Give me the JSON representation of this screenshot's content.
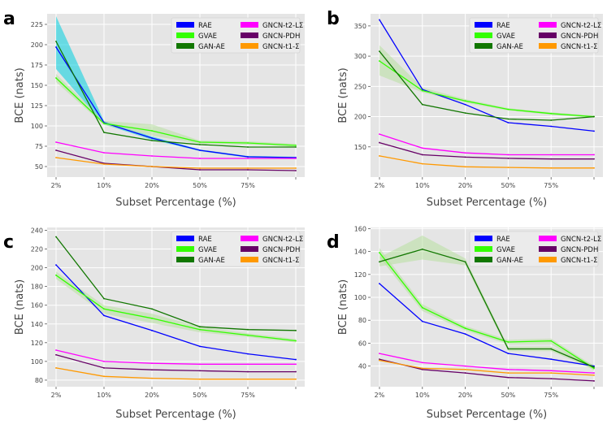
{
  "chart_data": [
    {
      "panel_label": "a",
      "type": "line",
      "categories": [
        "2%",
        "10%",
        "20%",
        "50%",
        "75%",
        ""
      ],
      "xlabel": "Subset Percentage (%)",
      "ylabel": "BCE (nats)",
      "ylim": [
        37,
        238
      ],
      "yticks": [
        50,
        75,
        100,
        125,
        150,
        175,
        200,
        225
      ],
      "grid": true,
      "legend": "top-right",
      "series": [
        {
          "name": "RAE",
          "color": "#0000ff",
          "values": [
            197,
            104,
            85,
            70,
            62,
            61
          ],
          "band": {
            "lower": [
              170,
              102,
              83,
              69,
              61,
              60
            ],
            "upper": [
              235,
              106,
              87,
              71,
              63,
              62
            ],
            "color": "#00d0e0"
          }
        },
        {
          "name": "GVAE",
          "color": "#33ff00",
          "values": [
            159,
            103,
            94,
            80,
            79,
            76
          ],
          "band": {
            "lower": [
              154,
              101,
              88,
              78,
              77,
              74
            ],
            "upper": [
              164,
              106,
              102,
              82,
              81,
              78
            ],
            "color": "#b8e0a0"
          }
        },
        {
          "name": "GAN-AE",
          "color": "#117700",
          "values": [
            204,
            92,
            82,
            77,
            74,
            74
          ]
        },
        {
          "name": "GNCN-t2-LΣ",
          "color": "#ff00ff",
          "values": [
            80,
            67,
            63,
            60,
            60,
            60
          ]
        },
        {
          "name": "GNCN-PDH",
          "color": "#660066",
          "values": [
            70,
            54,
            50,
            46,
            46,
            45
          ]
        },
        {
          "name": "GNCN-t1-Σ",
          "color": "#ff9900",
          "values": [
            61,
            53,
            50,
            48,
            48,
            48
          ]
        }
      ]
    },
    {
      "panel_label": "b",
      "type": "line",
      "categories": [
        "2%",
        "10%",
        "20%",
        "50%",
        "75%",
        ""
      ],
      "xlabel": "Subset Percentage (%)",
      "ylabel": "BCE (nats)",
      "ylim": [
        100,
        370
      ],
      "yticks": [
        150,
        200,
        250,
        300,
        350
      ],
      "grid": true,
      "legend": "top-right",
      "series": [
        {
          "name": "RAE",
          "color": "#0000ff",
          "values": [
            360,
            245,
            220,
            190,
            184,
            176
          ]
        },
        {
          "name": "GVAE",
          "color": "#33ff00",
          "values": [
            292,
            243,
            226,
            212,
            205,
            200
          ],
          "band": {
            "lower": [
              268,
              240,
              223,
              210,
              203,
              198
            ],
            "upper": [
              318,
              248,
              229,
              214,
              207,
              202
            ],
            "color": "#b8e0a0"
          }
        },
        {
          "name": "GAN-AE",
          "color": "#117700",
          "values": [
            308,
            220,
            206,
            196,
            194,
            200
          ]
        },
        {
          "name": "GNCN-t2-LΣ",
          "color": "#ff00ff",
          "values": [
            171,
            148,
            140,
            137,
            137,
            137
          ]
        },
        {
          "name": "GNCN-PDH",
          "color": "#660066",
          "values": [
            157,
            137,
            133,
            131,
            130,
            130
          ]
        },
        {
          "name": "GNCN-t1-Σ",
          "color": "#ff9900",
          "values": [
            135,
            122,
            117,
            116,
            115,
            115
          ]
        }
      ]
    },
    {
      "panel_label": "c",
      "type": "line",
      "categories": [
        "2%",
        "10%",
        "20%",
        "50%",
        "75%",
        ""
      ],
      "xlabel": "Subset Percentage (%)",
      "ylabel": "BCE (nats)",
      "ylim": [
        73,
        243
      ],
      "yticks": [
        80,
        100,
        120,
        140,
        160,
        180,
        200,
        220,
        240
      ],
      "grid": true,
      "legend": "top-right",
      "series": [
        {
          "name": "RAE",
          "color": "#0000ff",
          "values": [
            203,
            149,
            133,
            116,
            108,
            102
          ]
        },
        {
          "name": "GVAE",
          "color": "#33ff00",
          "values": [
            192,
            156,
            146,
            134,
            128,
            122
          ],
          "band": {
            "lower": [
              188,
              151,
              141,
              131,
              126,
              120
            ],
            "upper": [
              196,
              160,
              151,
              137,
              130,
              124
            ],
            "color": "#b8e0a0"
          }
        },
        {
          "name": "GAN-AE",
          "color": "#117700",
          "values": [
            233,
            167,
            156,
            137,
            134,
            133
          ]
        },
        {
          "name": "GNCN-t2-LΣ",
          "color": "#ff00ff",
          "values": [
            112,
            100,
            98,
            97,
            97,
            97
          ]
        },
        {
          "name": "GNCN-PDH",
          "color": "#660066",
          "values": [
            107,
            93,
            91,
            90,
            89,
            89
          ]
        },
        {
          "name": "GNCN-t1-Σ",
          "color": "#ff9900",
          "values": [
            93,
            84,
            82,
            81,
            81,
            81
          ]
        }
      ]
    },
    {
      "panel_label": "d",
      "type": "line",
      "categories": [
        "2%",
        "10%",
        "20%",
        "50%",
        "75%",
        ""
      ],
      "xlabel": "Subset Percentage (%)",
      "ylabel": "BCE (nats)",
      "ylim": [
        22,
        161
      ],
      "yticks": [
        40,
        60,
        80,
        100,
        120,
        140,
        160
      ],
      "grid": true,
      "legend": "top-right",
      "series": [
        {
          "name": "RAE",
          "color": "#0000ff",
          "values": [
            112,
            79,
            68,
            51,
            46,
            40
          ]
        },
        {
          "name": "GVAE",
          "color": "#33ff00",
          "values": [
            139,
            91,
            73,
            61,
            62,
            38
          ],
          "band": {
            "lower": [
              135,
              88,
              71,
              59,
              59,
              36
            ],
            "upper": [
              143,
              94,
              75,
              63,
              64,
              40
            ],
            "color": "#b8e0a0"
          }
        },
        {
          "name": "GAN-AE",
          "color": "#117700",
          "values": [
            131,
            142,
            131,
            55,
            55,
            39
          ],
          "band": {
            "lower": [
              127,
              133,
              128,
              53,
              53,
              37
            ],
            "upper": [
              135,
              154,
              134,
              57,
              57,
              41
            ],
            "color": "#b8e0a0"
          }
        },
        {
          "name": "GNCN-t2-LΣ",
          "color": "#ff00ff",
          "values": [
            51,
            43,
            40,
            37,
            36,
            34
          ]
        },
        {
          "name": "GNCN-PDH",
          "color": "#660066",
          "values": [
            46,
            37,
            34,
            30,
            29,
            27
          ]
        },
        {
          "name": "GNCN-t1-Σ",
          "color": "#ff9900",
          "values": [
            45,
            38,
            37,
            34,
            34,
            32
          ]
        }
      ]
    }
  ]
}
